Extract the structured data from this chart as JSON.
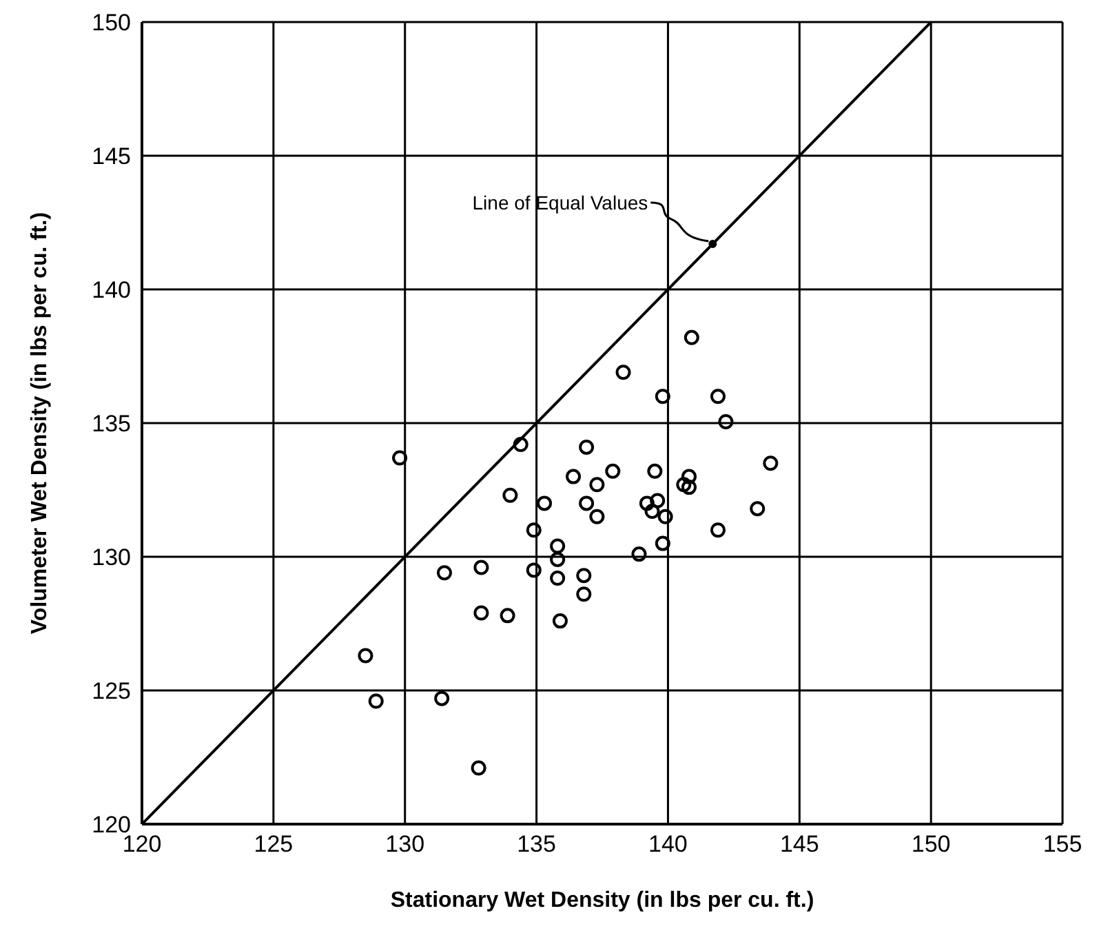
{
  "chart_data": {
    "type": "scatter",
    "xlabel": "Stationary Wet Density (in lbs per cu. ft.)",
    "ylabel": "Volumeter Wet Density (in lbs per cu. ft.)",
    "xlim": [
      120,
      155
    ],
    "xticks": [
      120,
      125,
      130,
      135,
      140,
      145,
      150,
      155
    ],
    "ylim": [
      120,
      150
    ],
    "yticks": [
      120,
      125,
      130,
      135,
      140,
      145,
      150
    ],
    "grid": true,
    "annotations": [
      {
        "text": "Line of Equal Values",
        "x": 141.7,
        "y": 141.7
      }
    ],
    "series": [
      {
        "type": "line",
        "color": "#000000",
        "marker": "none",
        "x": [
          120,
          150
        ],
        "values": [
          120,
          150
        ]
      },
      {
        "color": "#000000",
        "marker": "circle",
        "x": [
          129.8,
          128.5,
          128.9,
          131.4,
          132.8,
          131.5,
          132.9,
          132.9,
          133.9,
          134.0,
          134.4,
          134.9,
          134.9,
          135.3,
          135.8,
          135.8,
          135.8,
          135.9,
          136.4,
          136.8,
          136.8,
          136.9,
          136.9,
          137.3,
          137.3,
          138.3,
          139.8,
          141.9,
          142.2,
          137.9,
          139.5,
          139.2,
          139.6,
          139.4,
          139.9,
          139.8,
          138.9,
          140.8,
          140.6,
          140.8,
          141.9,
          143.4,
          143.9,
          140.9
        ],
        "values": [
          133.7,
          126.3,
          124.6,
          124.7,
          122.1,
          129.4,
          129.6,
          127.9,
          127.8,
          132.3,
          134.2,
          131.0,
          129.5,
          132.0,
          130.4,
          129.9,
          129.2,
          127.6,
          133.0,
          129.3,
          128.6,
          134.1,
          132.0,
          132.7,
          131.5,
          136.9,
          136.0,
          136.0,
          135.05,
          133.2,
          133.2,
          132.0,
          132.1,
          131.7,
          131.5,
          130.5,
          130.1,
          133.0,
          132.7,
          132.6,
          131.0,
          131.8,
          133.5,
          138.2
        ]
      }
    ]
  }
}
